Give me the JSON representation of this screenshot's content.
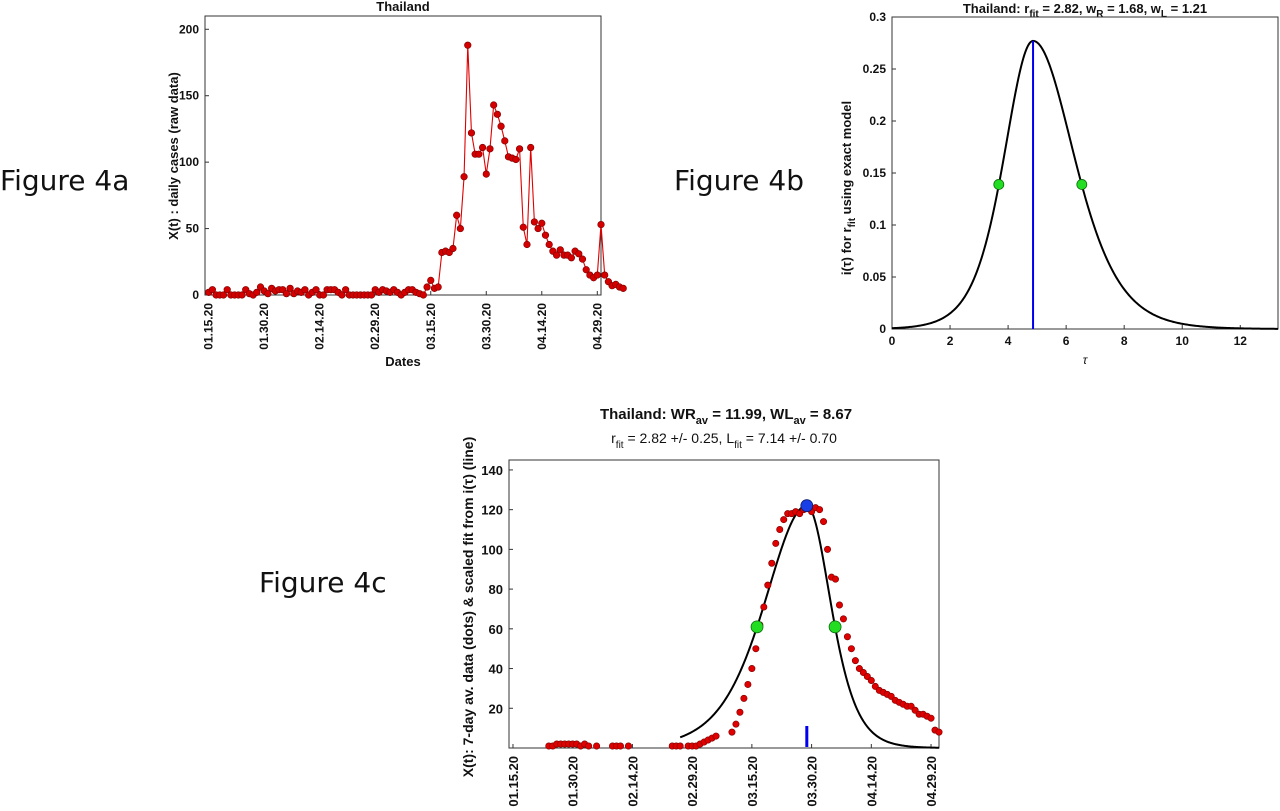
{
  "figure_labels": [
    "Figure 4a",
    "Figure 4b",
    "Figure 4c"
  ],
  "chart_data": [
    {
      "id": "fig4a",
      "type": "line",
      "title": "Thailand",
      "xlabel": "Dates",
      "ylabel": "X(t) : daily cases (raw data)",
      "x_ticks": [
        "01.15.20",
        "01.30.20",
        "02.14.20",
        "02.29.20",
        "03.15.20",
        "03.30.20",
        "04.14.20",
        "04.29.20"
      ],
      "x_tick_days": [
        0,
        15,
        30,
        45,
        60,
        75,
        90,
        105
      ],
      "xlim_days": [
        -1,
        106
      ],
      "ylim": [
        0,
        210
      ],
      "y_ticks": [
        0,
        50,
        100,
        150,
        200
      ],
      "series_color": "#e00000",
      "marker_color": "#d40000",
      "values": [
        2,
        4,
        0,
        0,
        0,
        4,
        0,
        0,
        0,
        0,
        4,
        1,
        0,
        2,
        6,
        3,
        1,
        5,
        3,
        4,
        4,
        1,
        5,
        1,
        3,
        2,
        4,
        0,
        2,
        4,
        0,
        0,
        4,
        4,
        4,
        2,
        0,
        4,
        0,
        0,
        0,
        0,
        0,
        0,
        0,
        4,
        2,
        4,
        3,
        2,
        4,
        2,
        0,
        2,
        4,
        4,
        2,
        1,
        0,
        6,
        11,
        5,
        6,
        32,
        33,
        32,
        35,
        60,
        50,
        89,
        188,
        122,
        106,
        106,
        111,
        91,
        110,
        143,
        136,
        127,
        116,
        104,
        103,
        102,
        110,
        51,
        38,
        111,
        55,
        50,
        54,
        45,
        38,
        33,
        30,
        34,
        30,
        30,
        28,
        33,
        31,
        27,
        19,
        15,
        13,
        15,
        53,
        15,
        10,
        7,
        8,
        6,
        5
      ]
    },
    {
      "id": "fig4b",
      "type": "line",
      "title": "Thailand: r_fit = 2.82, w_R = 1.68, w_L = 1.21",
      "title_parts": {
        "country": "Thailand: ",
        "r": "r",
        "r_sub": "fit",
        "r_val": " = 2.82, w",
        "wr_sub": "R",
        "wr_val": " = 1.68, w",
        "wl_sub": "L",
        "wl_val": " = 1.21"
      },
      "xlabel": "τ",
      "ylabel": "i(τ) for r_fit using exact model",
      "ylabel_parts": {
        "main": "i(τ) for r",
        "sub": "fit",
        "rest": " using exact model"
      },
      "xlim": [
        0,
        13.3
      ],
      "ylim": [
        0,
        0.3
      ],
      "x_ticks": [
        0,
        2,
        4,
        6,
        8,
        10,
        12
      ],
      "y_ticks": [
        0,
        0.05,
        0.1,
        0.15,
        0.2,
        0.25,
        0.3
      ],
      "peak": {
        "x": 4.86,
        "y": 0.277
      },
      "half_points": [
        {
          "x": 3.68,
          "y": 0.139
        },
        {
          "x": 6.54,
          "y": 0.139
        }
      ],
      "vline_x": 4.86,
      "curve_color": "#000000",
      "vline_color": "#0000ee",
      "half_point_color": "#22dd22"
    },
    {
      "id": "fig4c",
      "type": "scatter",
      "title": "Thailand: WR_av = 11.99, WL_av = 8.67",
      "title_parts": {
        "a": "Thailand: WR",
        "a_sub": "av",
        "b": " = 11.99, WL",
        "b_sub": "av",
        "c": " = 8.67"
      },
      "subtitle": "r_fit = 2.82 +/- 0.25, L_fit = 7.14 +/- 0.70",
      "subtitle_parts": {
        "a": "r",
        "a_sub": "fit",
        "b": " = 2.82 +/- 0.25, L",
        "b_sub": "fit",
        "c": " = 7.14 +/- 0.70"
      },
      "ylabel": "X(t): 7-day av. data (dots) & scaled fit from i(τ) (line)",
      "x_ticks": [
        "01.15.20",
        "01.30.20",
        "02.14.20",
        "02.29.20",
        "03.15.20",
        "03.30.20",
        "04.14.20",
        "04.29.20"
      ],
      "x_tick_days": [
        0,
        15,
        30,
        45,
        60,
        75,
        90,
        105
      ],
      "xlim_days": [
        -1,
        107
      ],
      "ylim": [
        0,
        145
      ],
      "y_ticks": [
        20,
        40,
        60,
        80,
        100,
        120,
        140
      ],
      "dots": [
        [
          9,
          1
        ],
        [
          10,
          1
        ],
        [
          11,
          2
        ],
        [
          12,
          2
        ],
        [
          13,
          2
        ],
        [
          14,
          2
        ],
        [
          15,
          2
        ],
        [
          16,
          2
        ],
        [
          17,
          1
        ],
        [
          18,
          2
        ],
        [
          19,
          1
        ],
        [
          21,
          1
        ],
        [
          25,
          1
        ],
        [
          26,
          1
        ],
        [
          27,
          1
        ],
        [
          29,
          1
        ],
        [
          40,
          1
        ],
        [
          41,
          1
        ],
        [
          42,
          1
        ],
        [
          44,
          1
        ],
        [
          45,
          1
        ],
        [
          46,
          1
        ],
        [
          47,
          2
        ],
        [
          48,
          3
        ],
        [
          49,
          4
        ],
        [
          50,
          5
        ],
        [
          51,
          6
        ],
        [
          55,
          8
        ],
        [
          56,
          12
        ],
        [
          57,
          18
        ],
        [
          58,
          25
        ],
        [
          59,
          32
        ],
        [
          60,
          40
        ],
        [
          61,
          50
        ],
        [
          62,
          62
        ],
        [
          63,
          71
        ],
        [
          64,
          82
        ],
        [
          65,
          93
        ],
        [
          66,
          103
        ],
        [
          67,
          110
        ],
        [
          68,
          115
        ],
        [
          69,
          118
        ],
        [
          70,
          118
        ],
        [
          71,
          119
        ],
        [
          72,
          118
        ],
        [
          73,
          120
        ],
        [
          74,
          122
        ],
        [
          75,
          119
        ],
        [
          76,
          121
        ],
        [
          77,
          120
        ],
        [
          78,
          114
        ],
        [
          79,
          100
        ],
        [
          80,
          86
        ],
        [
          81,
          85
        ],
        [
          82,
          72
        ],
        [
          83,
          65
        ],
        [
          84,
          56
        ],
        [
          85,
          50
        ],
        [
          86,
          44
        ],
        [
          87,
          40
        ],
        [
          88,
          38
        ],
        [
          89,
          36
        ],
        [
          90,
          34
        ],
        [
          91,
          31
        ],
        [
          92,
          29
        ],
        [
          93,
          28
        ],
        [
          94,
          27
        ],
        [
          95,
          26
        ],
        [
          96,
          24
        ],
        [
          97,
          23
        ],
        [
          98,
          22
        ],
        [
          99,
          21
        ],
        [
          100,
          21
        ],
        [
          101,
          19
        ],
        [
          102,
          17
        ],
        [
          103,
          17
        ],
        [
          104,
          16
        ],
        [
          105,
          15
        ],
        [
          106,
          9
        ],
        [
          107,
          8
        ]
      ],
      "fit_peak": {
        "day": 73.8,
        "value": 122
      },
      "half_points": [
        {
          "day": 61.3,
          "value": 61
        },
        {
          "day": 80.9,
          "value": 61
        }
      ],
      "peak_marker_color": "#1a3ee6",
      "half_point_color": "#22dd22",
      "dot_color": "#e00000"
    }
  ]
}
